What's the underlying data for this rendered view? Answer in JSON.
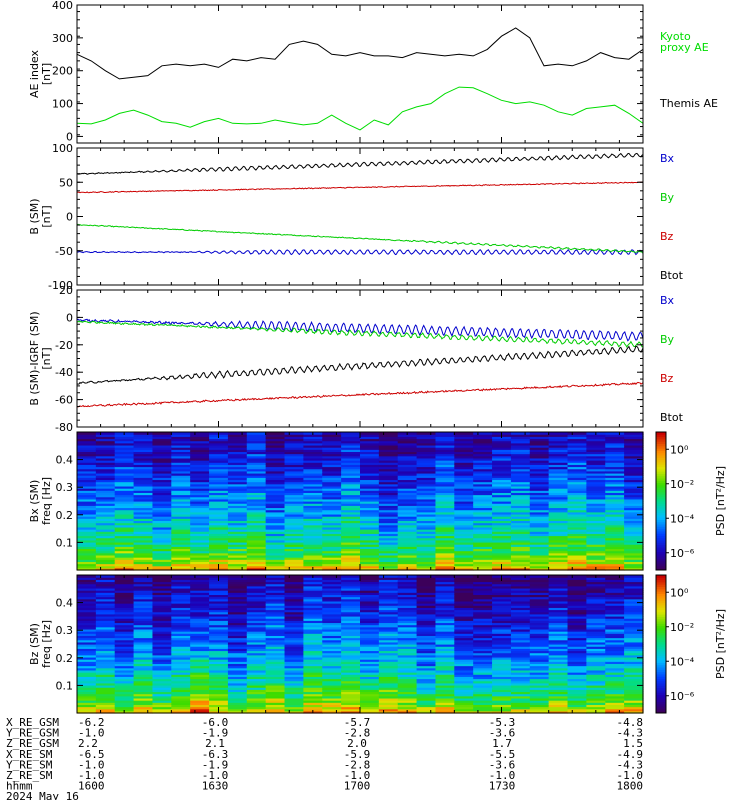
{
  "chart_data": [
    {
      "type": "line",
      "ylabel_lines": [
        "AE index",
        "[nT]"
      ],
      "ylim": [
        -20,
        400
      ],
      "yticks": [
        0,
        100,
        200,
        300,
        400
      ],
      "xlim": [
        0,
        120
      ],
      "xticks_major": [
        0,
        30,
        60,
        90,
        120
      ],
      "series": [
        {
          "name": "Kyoto proxy AE",
          "legend_lines": [
            "Kyoto",
            "proxy AE"
          ],
          "color": "#00dd00",
          "x": [
            0,
            3,
            6,
            9,
            12,
            15,
            18,
            21,
            24,
            27,
            30,
            33,
            36,
            39,
            42,
            45,
            48,
            51,
            54,
            57,
            60,
            63,
            66,
            69,
            72,
            75,
            78,
            81,
            84,
            87,
            90,
            93,
            96,
            99,
            102,
            105,
            108,
            111,
            114,
            117,
            120
          ],
          "y": [
            40,
            38,
            50,
            70,
            80,
            65,
            45,
            40,
            28,
            45,
            55,
            40,
            38,
            40,
            50,
            42,
            35,
            40,
            65,
            40,
            20,
            50,
            35,
            75,
            90,
            100,
            130,
            150,
            148,
            130,
            110,
            100,
            105,
            95,
            75,
            65,
            85,
            90,
            95,
            70,
            40
          ]
        },
        {
          "name": "Themis AE",
          "legend_lines": [
            "Themis AE"
          ],
          "color": "#000000",
          "x": [
            0,
            3,
            6,
            9,
            12,
            15,
            18,
            21,
            24,
            27,
            30,
            33,
            36,
            39,
            42,
            45,
            48,
            51,
            54,
            57,
            60,
            63,
            66,
            69,
            72,
            75,
            78,
            81,
            84,
            87,
            90,
            93,
            96,
            99,
            102,
            105,
            108,
            111,
            114,
            117,
            120
          ],
          "y": [
            250,
            230,
            200,
            175,
            180,
            185,
            215,
            220,
            215,
            220,
            210,
            235,
            230,
            240,
            235,
            280,
            290,
            280,
            250,
            245,
            255,
            245,
            245,
            240,
            255,
            250,
            245,
            250,
            245,
            265,
            305,
            330,
            300,
            215,
            220,
            215,
            230,
            255,
            240,
            235,
            265
          ]
        }
      ]
    },
    {
      "type": "line",
      "ylabel_lines": [
        "B (SM)",
        "[nT]"
      ],
      "ylim": [
        -100,
        100
      ],
      "yticks": [
        -100,
        -50,
        0,
        50,
        100
      ],
      "xlim": [
        0,
        120
      ],
      "xticks_major": [
        0,
        30,
        60,
        90,
        120
      ],
      "series": [
        {
          "name": "Bx",
          "color": "#0000cc",
          "y_start": -52,
          "y_end": -52,
          "wave_amp": 3,
          "wave_start": 20
        },
        {
          "name": "By",
          "color": "#00cc00",
          "y_start": -12,
          "y_end": -52,
          "wave_amp": 1,
          "wave_start": 60
        },
        {
          "name": "Bz",
          "color": "#cc0000",
          "y_start": 35,
          "y_end": 50,
          "wave_amp": 1,
          "wave_start": 200
        },
        {
          "name": "Btot",
          "color": "#000000",
          "y_start": 62,
          "y_end": 90,
          "wave_amp": 2.5,
          "wave_start": 10
        }
      ]
    },
    {
      "type": "line",
      "ylabel_lines": [
        "B (SM)-IGRF (SM)",
        "[nT]"
      ],
      "ylim": [
        -80,
        20
      ],
      "yticks": [
        -80,
        -60,
        -40,
        -20,
        0,
        20
      ],
      "xlim": [
        0,
        120
      ],
      "xticks_major": [
        0,
        30,
        60,
        90,
        120
      ],
      "series": [
        {
          "name": "Bx",
          "color": "#0000cc",
          "y_start": -2,
          "y_end": -14,
          "wave_amp": 3,
          "wave_start": 20
        },
        {
          "name": "By",
          "color": "#00cc00",
          "y_start": -3,
          "y_end": -20,
          "wave_amp": 1.5,
          "wave_start": 30
        },
        {
          "name": "Bz",
          "color": "#cc0000",
          "y_start": -65,
          "y_end": -48,
          "wave_amp": 1,
          "wave_start": 200
        },
        {
          "name": "Btot",
          "color": "#000000",
          "y_start": -48,
          "y_end": -23,
          "wave_amp": 2,
          "wave_start": 10
        }
      ]
    },
    {
      "type": "heatmap",
      "ylabel_lines": [
        "Bx (SM)",
        "freq  [Hz]"
      ],
      "ylim": [
        0,
        0.5
      ],
      "yticks": [
        0.1,
        0.2,
        0.3,
        0.4
      ],
      "x_bins": 30,
      "freq_bins": 64,
      "colorbar_label": "PSD [nT²/Hz]",
      "colorbar_ticks": [
        "10⁰",
        "10⁻²",
        "10⁻⁴",
        "10⁻⁶"
      ],
      "colorbar_exponents": [
        0,
        -2,
        -4,
        -6
      ],
      "colorbar_range": [
        -7,
        1
      ]
    },
    {
      "type": "heatmap",
      "ylabel_lines": [
        "Bz (SM)",
        "freq  [Hz]"
      ],
      "ylim": [
        0,
        0.5
      ],
      "yticks": [
        0.1,
        0.2,
        0.3,
        0.4
      ],
      "x_bins": 30,
      "freq_bins": 64,
      "colorbar_label": "PSD [nT²/Hz]",
      "colorbar_ticks": [
        "10⁰",
        "10⁻²",
        "10⁻⁴",
        "10⁻⁶"
      ],
      "colorbar_exponents": [
        0,
        -2,
        -4,
        -6
      ],
      "colorbar_range": [
        -7,
        1
      ]
    }
  ],
  "footer": {
    "rows": [
      {
        "label": "X_RE_GSM",
        "values": [
          "-6.2",
          "-6.0",
          "-5.7",
          "-5.3",
          "-4.8"
        ]
      },
      {
        "label": "Y_RE_GSM",
        "values": [
          "-1.0",
          "-1.9",
          "-2.8",
          "-3.6",
          "-4.3"
        ]
      },
      {
        "label": "Z_RE_GSM",
        "values": [
          "2.2",
          "2.1",
          "2.0",
          "1.7",
          "1.5"
        ]
      },
      {
        "label": "X_RE_SM",
        "values": [
          "-6.5",
          "-6.3",
          "-5.9",
          "-5.5",
          "-4.9"
        ]
      },
      {
        "label": "Y_RE_SM",
        "values": [
          "-1.0",
          "-1.9",
          "-2.8",
          "-3.6",
          "-4.3"
        ]
      },
      {
        "label": "Z_RE_SM",
        "values": [
          "-1.0",
          "-1.0",
          "-1.0",
          "-1.0",
          "-1.0"
        ]
      },
      {
        "label": "hhmm",
        "values": [
          "1600",
          "1630",
          "1700",
          "1730",
          "1800"
        ]
      }
    ],
    "date": "2024 May 16"
  }
}
